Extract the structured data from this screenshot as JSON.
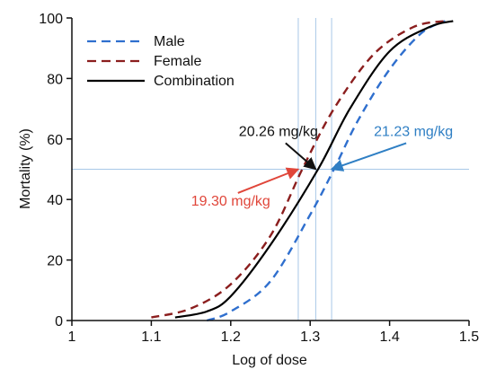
{
  "chart_data": {
    "type": "line",
    "xlabel": "Log of dose",
    "ylabel": "Mortality (%)",
    "xlim": [
      1.0,
      1.5
    ],
    "ylim": [
      0,
      100
    ],
    "x_ticks": [
      "1",
      "1.1",
      "1.2",
      "1.3",
      "1.4",
      "1.5"
    ],
    "y_ticks": [
      "0",
      "20",
      "40",
      "60",
      "80",
      "100"
    ],
    "grid": false,
    "legend_position": "top-left",
    "series": [
      {
        "name": "Male",
        "color": "#2f6fce",
        "dash": "dashed",
        "x": [
          1.17,
          1.2,
          1.25,
          1.3,
          1.33,
          1.36,
          1.4,
          1.44,
          1.47
        ],
        "y": [
          0,
          3,
          13,
          35,
          50,
          66,
          83,
          95,
          99
        ]
      },
      {
        "name": "Female",
        "color": "#8b1e1e",
        "dash": "dashed",
        "x": [
          1.1,
          1.15,
          1.2,
          1.25,
          1.29,
          1.33,
          1.38,
          1.43,
          1.47
        ],
        "y": [
          1,
          4,
          12,
          28,
          50,
          70,
          88,
          97,
          99
        ]
      },
      {
        "name": "Combination",
        "color": "#000000",
        "dash": "solid",
        "x": [
          1.13,
          1.17,
          1.2,
          1.25,
          1.31,
          1.35,
          1.4,
          1.45,
          1.48
        ],
        "y": [
          1,
          3,
          8,
          25,
          50,
          70,
          89,
          97,
          99
        ]
      }
    ],
    "reference_lines": {
      "horizontal_y": 50,
      "vertical_x": [
        1.285,
        1.307,
        1.327
      ]
    },
    "annotations": [
      {
        "text": "20.26 mg/kg",
        "color": "#111111",
        "label_x": 1.26,
        "label_y": 61,
        "point_x": 1.307,
        "point_y": 50
      },
      {
        "text": "21.23 mg/kg",
        "color": "#2f7fc4",
        "label_x": 1.43,
        "label_y": 61,
        "point_x": 1.327,
        "point_y": 50
      },
      {
        "text": "19.30 mg/kg",
        "color": "#e0463a",
        "label_x": 1.2,
        "label_y": 38,
        "point_x": 1.285,
        "point_y": 50
      }
    ]
  }
}
